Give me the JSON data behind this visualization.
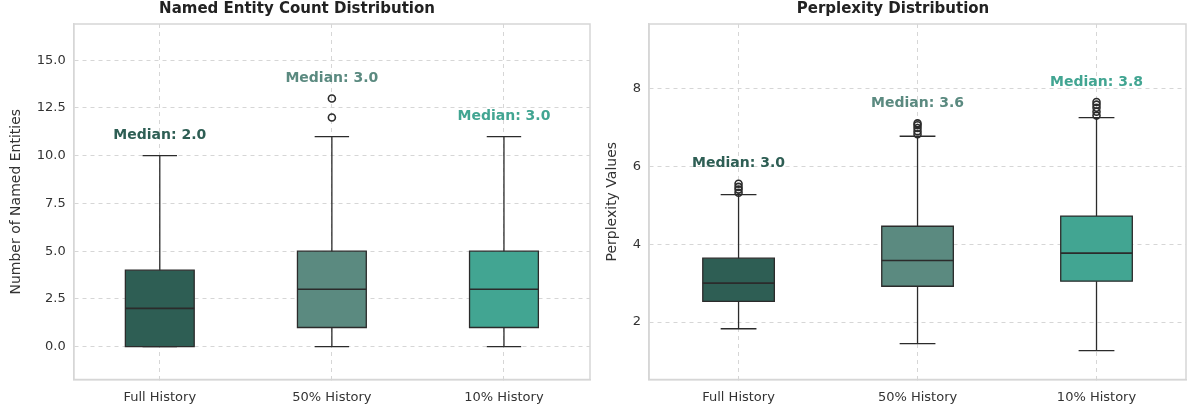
{
  "chart_data": [
    {
      "type": "box",
      "title": "Named Entity Count Distribution",
      "ylabel": "Number of Named Entities",
      "categories": [
        "Full History",
        "50% History",
        "10% History"
      ],
      "colors": [
        "#2e5e54",
        "#5b8a80",
        "#42a592"
      ],
      "boxes": [
        {
          "low": 0,
          "q1": 0,
          "median": 2,
          "q3": 4,
          "high": 10
        },
        {
          "low": 0,
          "q1": 1,
          "median": 3,
          "q3": 5,
          "high": 11,
          "outliers": [
            12,
            13
          ]
        },
        {
          "low": 0,
          "q1": 1,
          "median": 3,
          "q3": 5,
          "high": 11
        }
      ],
      "ylim": [
        -1.72,
        16.9
      ],
      "yticks": [
        {
          "value": 0,
          "label": "0.0"
        },
        {
          "value": 2.5,
          "label": "2.5"
        },
        {
          "value": 5,
          "label": "5.0"
        },
        {
          "value": 7.5,
          "label": "7.5"
        },
        {
          "value": 10,
          "label": "10.0"
        },
        {
          "value": 12.5,
          "label": "12.5"
        },
        {
          "value": 15,
          "label": "15.0"
        }
      ],
      "grid": true,
      "annotations": [
        "Median: 2.0",
        "Median: 3.0",
        "Median: 3.0"
      ]
    },
    {
      "type": "box",
      "title": "Perplexity Distribution",
      "ylabel": "Perplexity Values",
      "categories": [
        "Full History",
        "50% History",
        "10% History"
      ],
      "colors": [
        "#2e5e54",
        "#5b8a80",
        "#42a592"
      ],
      "boxes": [
        {
          "low": 1.83,
          "q1": 2.53,
          "median": 3.0,
          "q3": 3.64,
          "high": 5.27,
          "outliers": [
            5.32,
            5.4,
            5.47,
            5.55
          ]
        },
        {
          "low": 1.45,
          "q1": 2.92,
          "median": 3.58,
          "q3": 4.46,
          "high": 6.77,
          "outliers": [
            6.82,
            6.9,
            6.98,
            7.05,
            7.1
          ]
        },
        {
          "low": 1.27,
          "q1": 3.05,
          "median": 3.77,
          "q3": 4.72,
          "high": 7.25,
          "outliers": [
            7.3,
            7.4,
            7.5,
            7.58,
            7.65
          ]
        }
      ],
      "ylim": [
        0.53,
        9.65
      ],
      "yticks": [
        2,
        4,
        6,
        8
      ],
      "grid": true,
      "annotations": [
        "Median: 3.0",
        "Median: 3.6",
        "Median: 3.8"
      ]
    }
  ]
}
